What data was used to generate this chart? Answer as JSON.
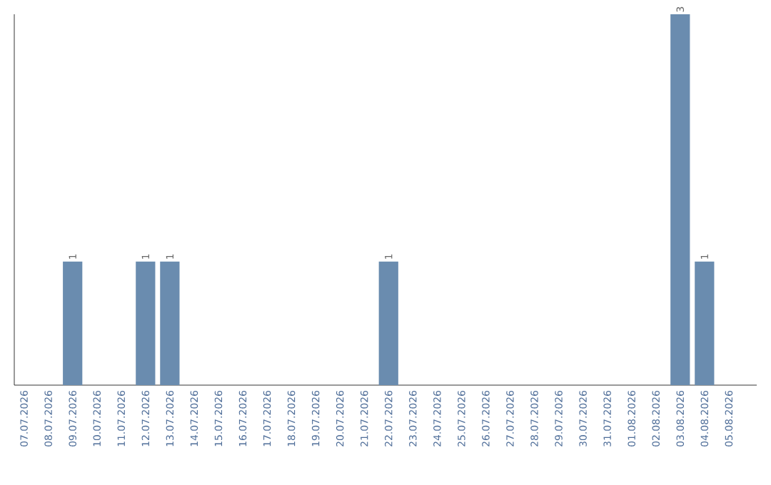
{
  "chart_data": {
    "type": "bar",
    "categories": [
      "07.07.2026",
      "08.07.2026",
      "09.07.2026",
      "10.07.2026",
      "11.07.2026",
      "12.07.2026",
      "13.07.2026",
      "14.07.2026",
      "15.07.2026",
      "16.07.2026",
      "17.07.2026",
      "18.07.2026",
      "19.07.2026",
      "20.07.2026",
      "21.07.2026",
      "22.07.2026",
      "23.07.2026",
      "24.07.2026",
      "25.07.2026",
      "26.07.2026",
      "27.07.2026",
      "28.07.2026",
      "29.07.2026",
      "30.07.2026",
      "31.07.2026",
      "01.08.2026",
      "02.08.2026",
      "03.08.2026",
      "04.08.2026",
      "05.08.2026"
    ],
    "values": [
      0,
      0,
      1,
      0,
      0,
      1,
      1,
      0,
      0,
      0,
      0,
      0,
      0,
      0,
      0,
      1,
      0,
      0,
      0,
      0,
      0,
      0,
      0,
      0,
      0,
      0,
      0,
      3,
      1,
      0
    ],
    "value_labels": [
      null,
      null,
      "1",
      null,
      null,
      "1",
      "1",
      null,
      null,
      null,
      null,
      null,
      null,
      null,
      null,
      "1",
      null,
      null,
      null,
      null,
      null,
      null,
      null,
      null,
      null,
      null,
      null,
      "3",
      "1",
      null
    ],
    "color": "#6a8caf"
  }
}
